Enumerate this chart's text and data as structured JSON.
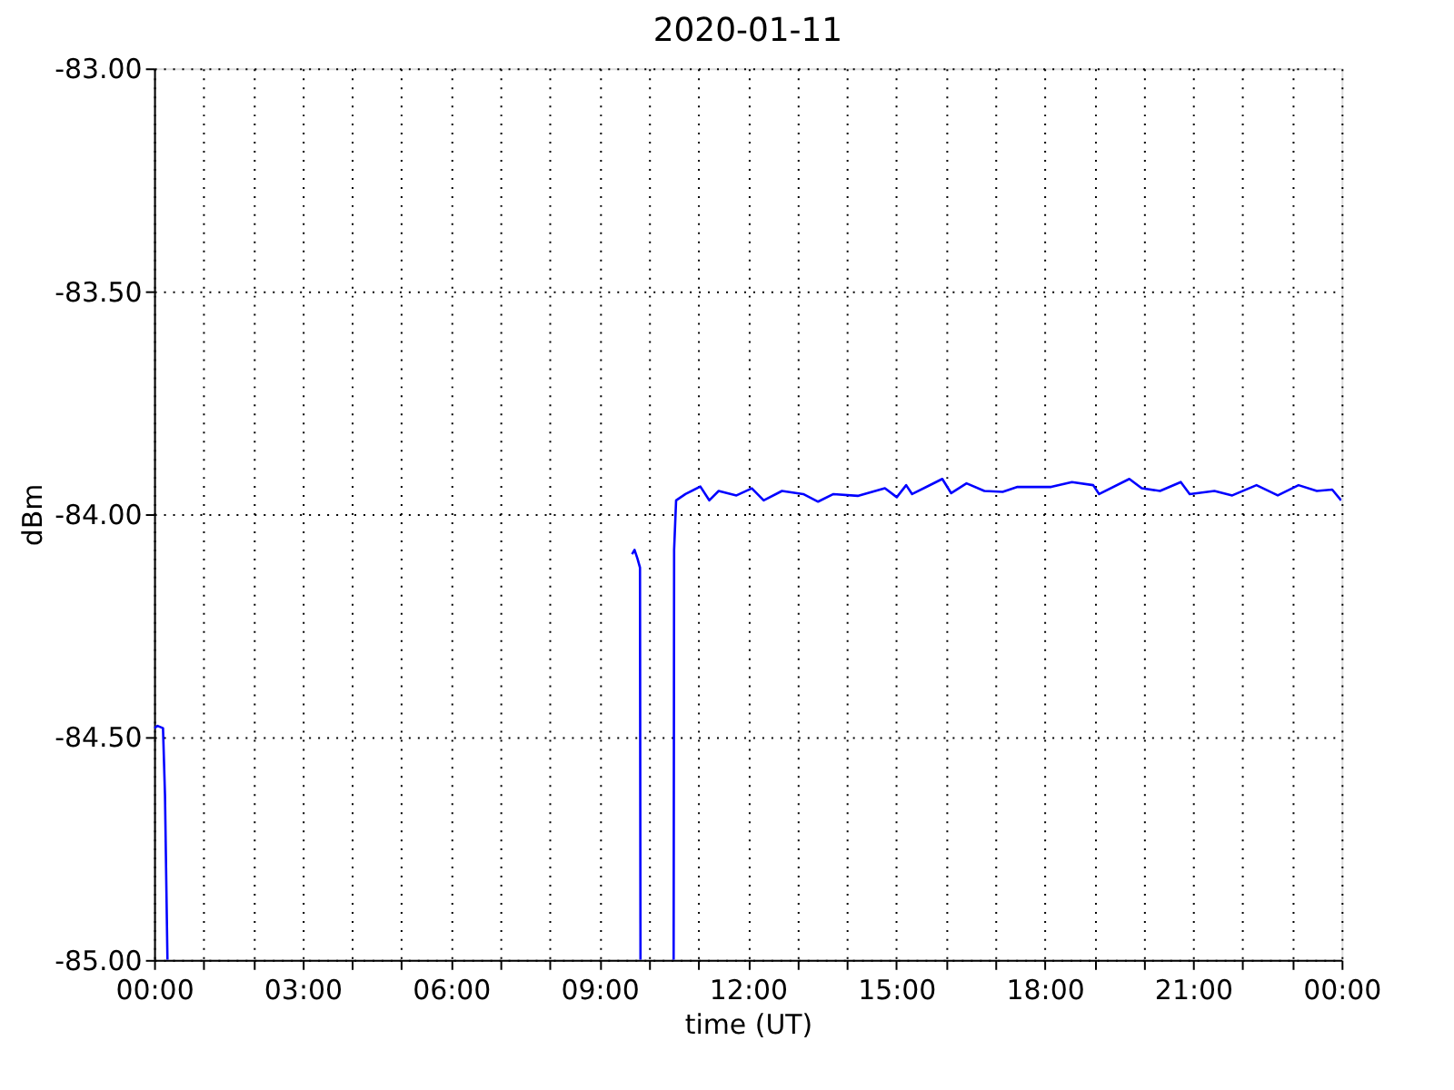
{
  "chart_data": {
    "type": "line",
    "title": "2020-01-11",
    "xlabel": "time (UT)",
    "ylabel": "dBm",
    "x": [
      0,
      0.07,
      0.18,
      0.22,
      0.27,
      null,
      9.66,
      9.71,
      9.77,
      9.82,
      9.83,
      null,
      10.5,
      10.51,
      10.55,
      10.74,
      11.04,
      11.22,
      11.41,
      11.77,
      12.08,
      12.32,
      12.69,
      13.12,
      13.42,
      13.73,
      14.22,
      14.77,
      15.01,
      15.2,
      15.32,
      15.93,
      16.11,
      16.42,
      16.78,
      17.15,
      17.45,
      18.13,
      18.55,
      18.98,
      19.1,
      19.71,
      19.96,
      20.33,
      20.75,
      20.93,
      21.43,
      21.79,
      22.28,
      22.71,
      23.13,
      23.5,
      23.81,
      23.99
    ],
    "series": [
      {
        "color": "#0000ff",
        "values": [
          -84.48,
          -84.475,
          -84.48,
          -84.63,
          -85.0,
          null,
          -84.09,
          -84.08,
          -84.1,
          -84.12,
          -85.0,
          null,
          -85.0,
          -84.08,
          -83.969,
          -83.955,
          -83.938,
          -83.969,
          -83.948,
          -83.958,
          -83.942,
          -83.969,
          -83.948,
          -83.955,
          -83.972,
          -83.955,
          -83.959,
          -83.942,
          -83.962,
          -83.935,
          -83.955,
          -83.921,
          -83.953,
          -83.931,
          -83.948,
          -83.95,
          -83.939,
          -83.939,
          -83.928,
          -83.935,
          -83.955,
          -83.921,
          -83.942,
          -83.948,
          -83.928,
          -83.955,
          -83.948,
          -83.958,
          -83.935,
          -83.958,
          -83.935,
          -83.948,
          -83.945,
          -83.969
        ]
      }
    ],
    "xlim": [
      0,
      24
    ],
    "xticks": [
      {
        "value": 0,
        "label": "00:00"
      },
      {
        "value": 1,
        "label": null
      },
      {
        "value": 2,
        "label": null
      },
      {
        "value": 3,
        "label": "03:00"
      },
      {
        "value": 4,
        "label": null
      },
      {
        "value": 5,
        "label": null
      },
      {
        "value": 6,
        "label": "06:00"
      },
      {
        "value": 7,
        "label": null
      },
      {
        "value": 8,
        "label": null
      },
      {
        "value": 9,
        "label": "09:00"
      },
      {
        "value": 10,
        "label": null
      },
      {
        "value": 11,
        "label": null
      },
      {
        "value": 12,
        "label": "12:00"
      },
      {
        "value": 13,
        "label": null
      },
      {
        "value": 14,
        "label": null
      },
      {
        "value": 15,
        "label": "15:00"
      },
      {
        "value": 16,
        "label": null
      },
      {
        "value": 17,
        "label": null
      },
      {
        "value": 18,
        "label": "18:00"
      },
      {
        "value": 19,
        "label": null
      },
      {
        "value": 20,
        "label": null
      },
      {
        "value": 21,
        "label": "21:00"
      },
      {
        "value": 22,
        "label": null
      },
      {
        "value": 23,
        "label": null
      },
      {
        "value": 24,
        "label": "00:00"
      }
    ],
    "ylim": [
      -85,
      -83
    ],
    "yticks": [
      {
        "value": -85,
        "label": "-85.00"
      },
      {
        "value": -84.5,
        "label": "-84.50"
      },
      {
        "value": -84,
        "label": "-84.00"
      },
      {
        "value": -83.5,
        "label": "-83.50"
      },
      {
        "value": -83,
        "label": "-83.00"
      }
    ],
    "grid": true,
    "legend": false,
    "marker": "none",
    "line_style": "solid"
  }
}
